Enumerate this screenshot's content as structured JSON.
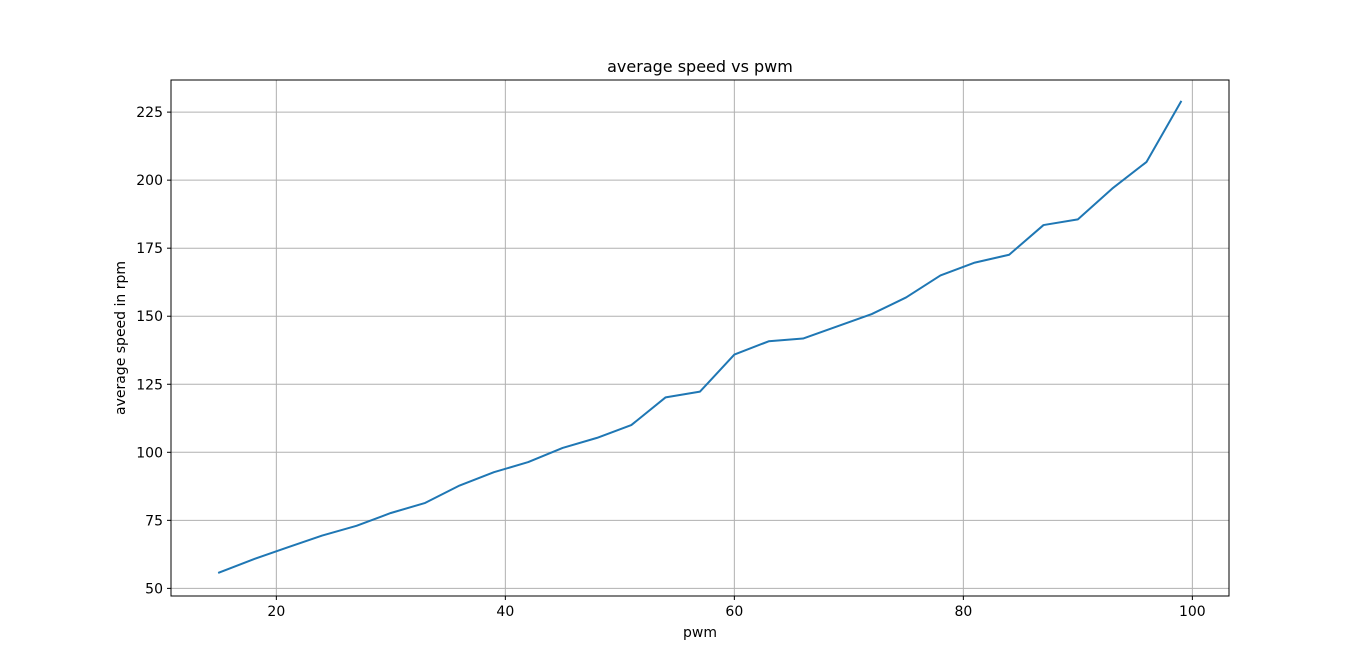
{
  "chart_data": {
    "type": "line",
    "title": "average speed vs pwm",
    "xlabel": "pwm",
    "ylabel": "average speed in rpm",
    "xlim": [
      10.8,
      103.2
    ],
    "ylim": [
      47.2,
      236.8
    ],
    "xticks": [
      20,
      40,
      60,
      80,
      100
    ],
    "yticks": [
      50,
      75,
      100,
      125,
      150,
      175,
      200,
      225
    ],
    "grid": true,
    "series": [
      {
        "color": "#1f77b4",
        "x": [
          15,
          18,
          21,
          24,
          27,
          30,
          33,
          36,
          39,
          42,
          45,
          48,
          51,
          54,
          57,
          60,
          63,
          66,
          69,
          72,
          75,
          78,
          81,
          84,
          87,
          90,
          93,
          96,
          99
        ],
        "y": [
          55.8,
          60.7,
          65.1,
          69.4,
          73.0,
          77.7,
          81.4,
          87.8,
          92.7,
          96.4,
          101.6,
          105.3,
          110.0,
          120.2,
          122.3,
          135.9,
          140.8,
          141.8,
          146.3,
          150.8,
          156.9,
          165.0,
          169.7,
          172.6,
          183.5,
          185.6,
          196.9,
          206.7,
          228.8
        ]
      }
    ]
  }
}
